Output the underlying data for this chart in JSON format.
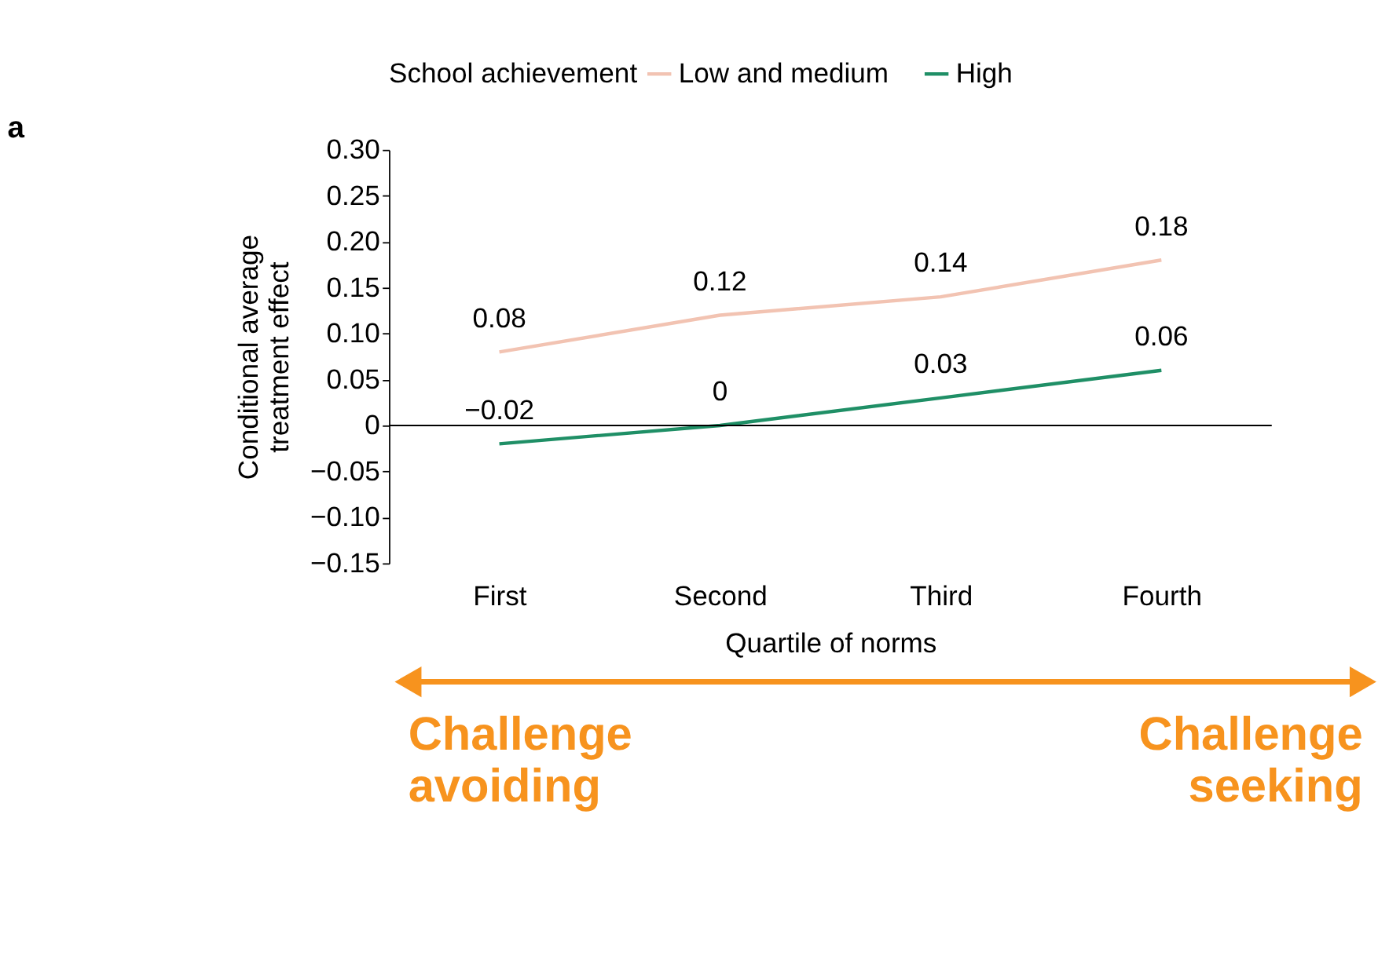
{
  "chart_data": {
    "type": "line",
    "title": "a",
    "xlabel": "Quartile of norms",
    "ylabel": "Conditional average\ntreatment effect",
    "legend_title": "School achievement",
    "categories": [
      "First",
      "Second",
      "Third",
      "Fourth"
    ],
    "series": [
      {
        "name": "Low and medium",
        "color": "#f2c3b2",
        "values": [
          0.08,
          0.12,
          0.14,
          0.18
        ],
        "value_labels": [
          "0.08",
          "0.12",
          "0.14",
          "0.18"
        ]
      },
      {
        "name": "High",
        "color": "#1f8f66",
        "values": [
          -0.02,
          0,
          0.03,
          0.06
        ],
        "value_labels": [
          "−0.02",
          "0",
          "0.03",
          "0.06"
        ]
      }
    ],
    "ylim": [
      -0.15,
      0.3
    ],
    "yticks": [
      {
        "value": -0.15,
        "label": "−0.15"
      },
      {
        "value": -0.1,
        "label": "−0.10"
      },
      {
        "value": -0.05,
        "label": "−0.05"
      },
      0,
      {
        "value": 0.05,
        "label": "0.05"
      },
      {
        "value": 0.1,
        "label": "0.10"
      },
      {
        "value": 0.15,
        "label": "0.15"
      },
      {
        "value": 0.2,
        "label": "0.20"
      },
      {
        "value": 0.25,
        "label": "0.25"
      },
      {
        "value": 0.3,
        "label": "0.30"
      }
    ],
    "ref_lines": [
      {
        "axis": "y",
        "value": 0,
        "color": "#000000"
      }
    ],
    "annotations": [
      "Challenge\navoiding",
      "Challenge\nseeking"
    ],
    "grid": false,
    "legend": "top",
    "marker": "none",
    "line_style": "solid"
  }
}
